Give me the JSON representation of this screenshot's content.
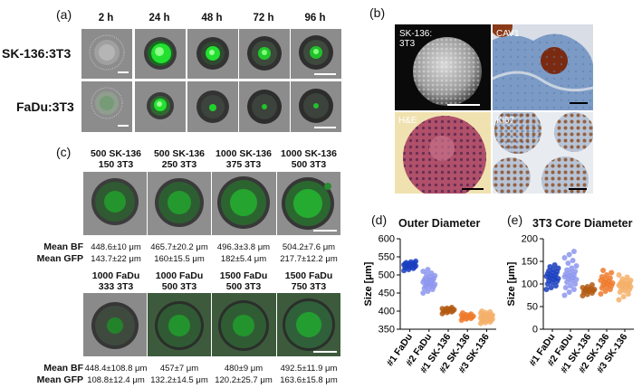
{
  "panel_labels": {
    "a": "(a)",
    "b": "(b)",
    "c": "(c)",
    "d": "(d)",
    "e": "(e)"
  },
  "panel_a": {
    "timepoints": [
      "2 h",
      "24 h",
      "48 h",
      "72 h",
      "96 h"
    ],
    "rows": [
      "SK-136:3T3",
      "FaDu:3T3"
    ],
    "colors": {
      "spheroid_edge": "#2b2b2b",
      "gfp": "#22e030",
      "background": "#8c8c8c"
    }
  },
  "panel_b": {
    "sem_label": "SK-136:\n3T3",
    "cav1_label": "CAV1",
    "he_label": "H&E",
    "ki67_label": "Ki67"
  },
  "panel_c": {
    "row1": [
      {
        "line1": "500 SK-136",
        "line2": "150 3T3",
        "bf": "448.6±10 μm",
        "gfp": "143.7±22 μm"
      },
      {
        "line1": "500 SK-136",
        "line2": "250 3T3",
        "bf": "465.7±20.2 μm",
        "gfp": "160±15.5 μm"
      },
      {
        "line1": "1000 SK-136",
        "line2": "375 3T3",
        "bf": "496.3±3.8 μm",
        "gfp": "182±5.4 μm"
      },
      {
        "line1": "1000 SK-136",
        "line2": "500 3T3",
        "bf": "504.2±7.6 μm",
        "gfp": "217.7±12.2 μm"
      }
    ],
    "row2": [
      {
        "line1": "1000 FaDu",
        "line2": "333 3T3",
        "bf": "448.4±108.8 μm",
        "gfp": "108.8±12.4 μm"
      },
      {
        "line1": "1000 FaDu",
        "line2": "500 3T3",
        "bf": "457±7 μm",
        "gfp": "132.2±14.5 μm"
      },
      {
        "line1": "1500 FaDu",
        "line2": "500 3T3",
        "bf": "480±9 μm",
        "gfp": "120.2±25.7 μm"
      },
      {
        "line1": "1500 FaDu",
        "line2": "750 3T3",
        "bf": "492.5±11.9 μm",
        "gfp": "163.6±15.8 μm"
      }
    ],
    "mean_bf_label": "Mean BF",
    "mean_gfp_label": "Mean GFP"
  },
  "chart_data": [
    {
      "type": "scatter",
      "title": "Outer Diameter",
      "ylabel": "Size [μm]",
      "ylim": [
        350,
        600
      ],
      "yticks": [
        350,
        400,
        450,
        500,
        550,
        600
      ],
      "categories": [
        "#1 FaDu",
        "#2 FaDu",
        "#1 SK-136",
        "#2 SK-136",
        "#3 SK-136"
      ],
      "colors": [
        "#1b3fbf",
        "#8d97ee",
        "#b35a12",
        "#ee7a2a",
        "#f5b06a"
      ],
      "series": [
        {
          "values": [
            512,
            515,
            518,
            520,
            521,
            522,
            523,
            524,
            525,
            526,
            527,
            528,
            529,
            530,
            531,
            532,
            533,
            534,
            536,
            538
          ]
        },
        {
          "values": [
            450,
            455,
            460,
            463,
            466,
            468,
            470,
            472,
            474,
            476,
            478,
            480,
            482,
            484,
            486,
            488,
            490,
            492,
            495,
            498,
            502,
            505,
            510,
            515
          ]
        },
        {
          "values": [
            393,
            396,
            398,
            399,
            400,
            401,
            402,
            403,
            404,
            405,
            406,
            407,
            408,
            410
          ]
        },
        {
          "values": [
            375,
            378,
            380,
            381,
            382,
            383,
            384,
            385,
            386,
            387,
            388,
            389,
            390,
            392,
            395
          ]
        },
        {
          "values": [
            366,
            368,
            370,
            372,
            374,
            375,
            376,
            377,
            378,
            379,
            380,
            381,
            382,
            383,
            384,
            385,
            386,
            387,
            388,
            389,
            390,
            392,
            394,
            396,
            398,
            400
          ]
        }
      ]
    },
    {
      "type": "scatter",
      "title": "3T3 Core Diameter",
      "ylabel": "Size [μm]",
      "ylim": [
        0,
        200
      ],
      "yticks": [
        0,
        50,
        100,
        150,
        200
      ],
      "categories": [
        "#1 FaDu",
        "#2 FaDu",
        "#1 SK-136",
        "#2 SK-136",
        "#3 SK-136"
      ],
      "colors": [
        "#1b3fbf",
        "#8d97ee",
        "#b35a12",
        "#ee7a2a",
        "#f5b06a"
      ],
      "series": [
        {
          "values": [
            88,
            92,
            96,
            100,
            103,
            106,
            108,
            110,
            112,
            114,
            115,
            117,
            119,
            121,
            123,
            125,
            127,
            129,
            132,
            135,
            138,
            142
          ]
        },
        {
          "values": [
            75,
            82,
            88,
            92,
            96,
            100,
            104,
            107,
            110,
            112,
            114,
            116,
            118,
            120,
            122,
            125,
            128,
            131,
            135,
            140,
            146,
            152,
            158,
            165,
            172
          ]
        },
        {
          "values": [
            74,
            77,
            80,
            82,
            84,
            85,
            86,
            87,
            88,
            89,
            90,
            92,
            94,
            98
          ]
        },
        {
          "values": [
            78,
            84,
            88,
            91,
            94,
            96,
            98,
            100,
            102,
            104,
            106,
            108,
            110,
            113,
            116,
            120,
            125,
            130
          ]
        },
        {
          "values": [
            65,
            72,
            78,
            82,
            85,
            88,
            90,
            92,
            94,
            95,
            96,
            97,
            98,
            99,
            100,
            101,
            102,
            104,
            106,
            108,
            111,
            115,
            120
          ]
        }
      ]
    }
  ]
}
